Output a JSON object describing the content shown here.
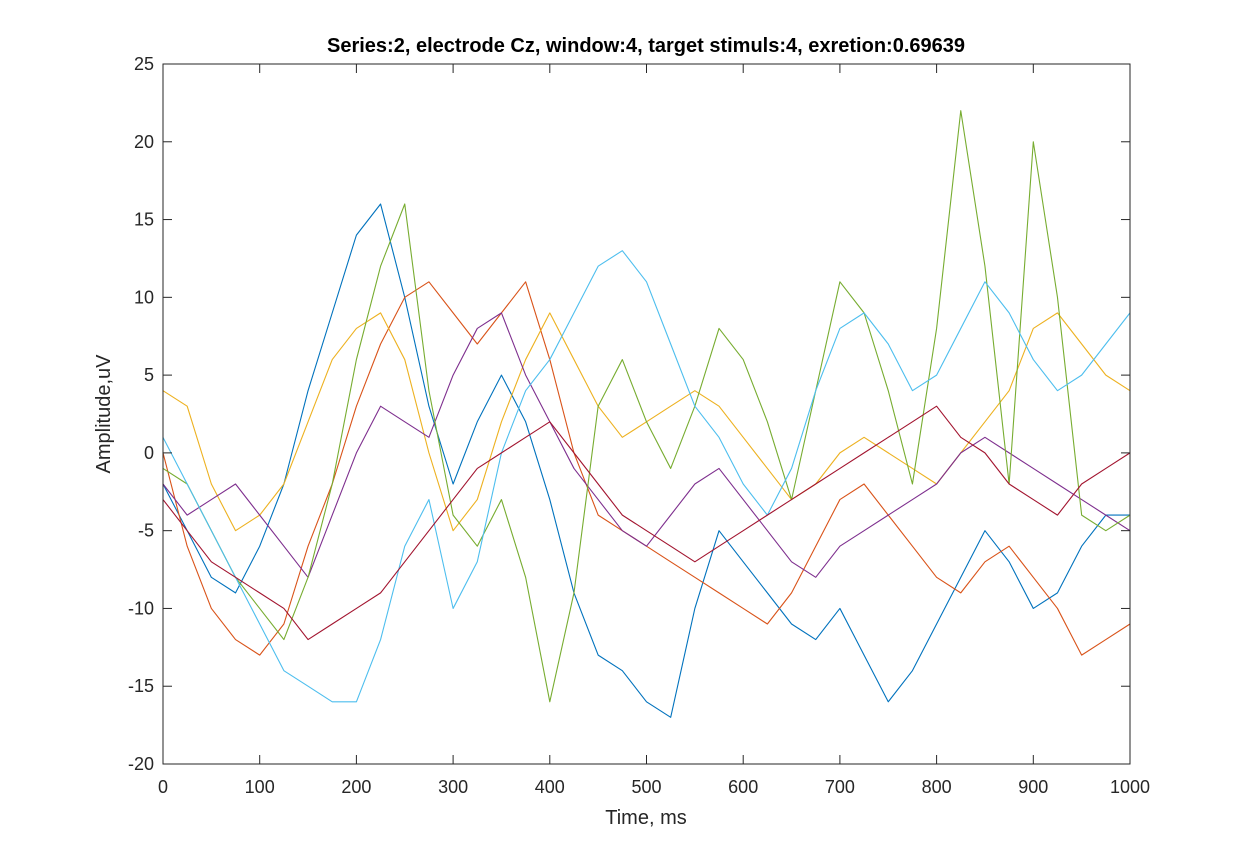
{
  "chart_data": {
    "type": "line",
    "title": "Series:2, electrode Cz, window:4, target stimuls:4, exretion:0.69639",
    "xlabel": "Time, ms",
    "ylabel": "Amplitude,uV",
    "xlim": [
      0,
      1000
    ],
    "ylim": [
      -20,
      25
    ],
    "xticks": [
      0,
      100,
      200,
      300,
      400,
      500,
      600,
      700,
      800,
      900,
      1000
    ],
    "yticks": [
      -20,
      -15,
      -10,
      -5,
      0,
      5,
      10,
      15,
      20,
      25
    ],
    "grid": false,
    "box": true,
    "x": [
      0,
      25,
      50,
      75,
      100,
      125,
      150,
      175,
      200,
      225,
      250,
      275,
      300,
      325,
      350,
      375,
      400,
      425,
      450,
      475,
      500,
      525,
      550,
      575,
      600,
      625,
      650,
      675,
      700,
      725,
      750,
      775,
      800,
      825,
      850,
      875,
      900,
      925,
      950,
      975,
      1000
    ],
    "series": [
      {
        "color": "#0072BD",
        "values": [
          -2,
          -5,
          -8,
          -9,
          -6,
          -2,
          4,
          9,
          14,
          16,
          10,
          3,
          -2,
          2,
          5,
          2,
          -3,
          -9,
          -13,
          -14,
          -16,
          -17,
          -10,
          -5,
          -7,
          -9,
          -11,
          -12,
          -10,
          -13,
          -16,
          -14,
          -11,
          -8,
          -5,
          -7,
          -10,
          -9,
          -6,
          -4,
          -4
        ]
      },
      {
        "color": "#D95319",
        "values": [
          0,
          -6,
          -10,
          -12,
          -13,
          -11,
          -6,
          -2,
          3,
          7,
          10,
          11,
          9,
          7,
          9,
          11,
          6,
          0,
          -4,
          -5,
          -6,
          -7,
          -8,
          -9,
          -10,
          -11,
          -9,
          -6,
          -3,
          -2,
          -4,
          -6,
          -8,
          -9,
          -7,
          -6,
          -8,
          -10,
          -13,
          -12,
          -11
        ]
      },
      {
        "color": "#EDB120",
        "values": [
          4,
          3,
          -2,
          -5,
          -4,
          -2,
          2,
          6,
          8,
          9,
          6,
          0,
          -5,
          -3,
          2,
          6,
          9,
          6,
          3,
          1,
          2,
          3,
          4,
          3,
          1,
          -1,
          -3,
          -2,
          0,
          1,
          0,
          -1,
          -2,
          0,
          2,
          4,
          8,
          9,
          7,
          5,
          4
        ]
      },
      {
        "color": "#7E2F8E",
        "values": [
          -2,
          -4,
          -3,
          -2,
          -4,
          -6,
          -8,
          -4,
          0,
          3,
          2,
          1,
          5,
          8,
          9,
          5,
          2,
          -1,
          -3,
          -5,
          -6,
          -4,
          -2,
          -1,
          -3,
          -5,
          -7,
          -8,
          -6,
          -5,
          -4,
          -3,
          -2,
          0,
          1,
          0,
          -1,
          -2,
          -3,
          -4,
          -5
        ]
      },
      {
        "color": "#77AC30",
        "values": [
          -1,
          -2,
          -5,
          -8,
          -10,
          -12,
          -8,
          -2,
          6,
          12,
          16,
          4,
          -4,
          -6,
          -3,
          -8,
          -16,
          -9,
          3,
          6,
          2,
          -1,
          3,
          8,
          6,
          2,
          -3,
          4,
          11,
          9,
          4,
          -2,
          8,
          22,
          12,
          -2,
          20,
          10,
          -4,
          -5,
          -4
        ]
      },
      {
        "color": "#4DBEEE",
        "values": [
          1,
          -2,
          -5,
          -8,
          -11,
          -14,
          -15,
          -16,
          -16,
          -12,
          -6,
          -3,
          -10,
          -7,
          0,
          4,
          6,
          9,
          12,
          13,
          11,
          7,
          3,
          1,
          -2,
          -4,
          -1,
          4,
          8,
          9,
          7,
          4,
          5,
          8,
          11,
          9,
          6,
          4,
          5,
          7,
          9
        ]
      },
      {
        "color": "#A2142F",
        "values": [
          -3,
          -5,
          -7,
          -8,
          -9,
          -10,
          -12,
          -11,
          -10,
          -9,
          -7,
          -5,
          -3,
          -1,
          0,
          1,
          2,
          0,
          -2,
          -4,
          -5,
          -6,
          -7,
          -6,
          -5,
          -4,
          -3,
          -2,
          -1,
          0,
          1,
          2,
          3,
          1,
          0,
          -2,
          -3,
          -4,
          -2,
          -1,
          0
        ]
      }
    ]
  }
}
